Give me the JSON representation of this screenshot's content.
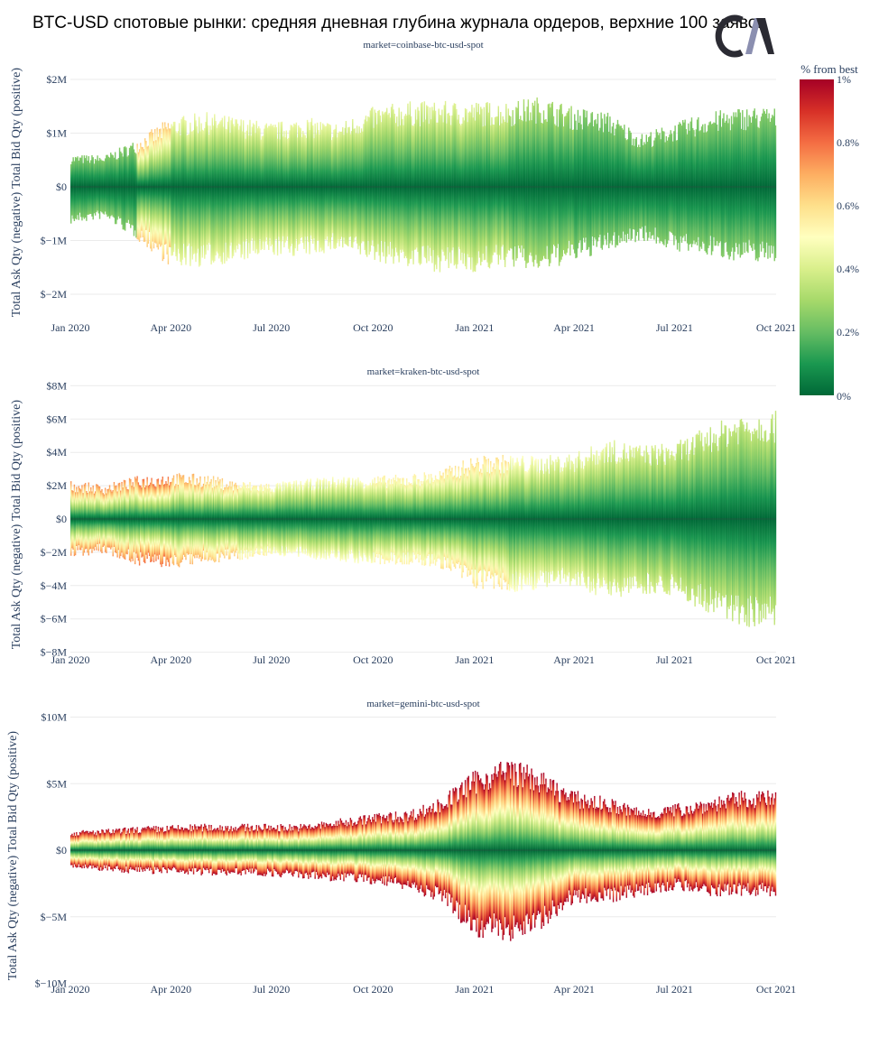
{
  "title": "BTC-USD спотовые рынки: средняя дневная глубина журнала ордеров, верхние 100 заявок",
  "logo_text": "CM",
  "chart_data": [
    {
      "type": "area",
      "subtitle": "market=coinbase-btc-usd-spot",
      "ylabel_top": "Total Bid Qty (positive)",
      "ylabel_bottom": "Total Ask Qty (negative)",
      "xlim": [
        "2020-01-01",
        "2021-10-01"
      ],
      "ylim": [
        -2.5,
        2.4
      ],
      "y_ticks": [
        {
          "v": 2,
          "label": "$2M"
        },
        {
          "v": 1,
          "label": "$1M"
        },
        {
          "v": 0,
          "label": "$0"
        },
        {
          "v": -1,
          "label": "$−1M"
        },
        {
          "v": -2,
          "label": "$−2M"
        }
      ],
      "months": [
        "2020-01",
        "2020-02",
        "2020-03",
        "2020-04",
        "2020-05",
        "2020-06",
        "2020-07",
        "2020-08",
        "2020-09",
        "2020-10",
        "2020-11",
        "2020-12",
        "2021-01",
        "2021-02",
        "2021-03",
        "2021-04",
        "2021-05",
        "2021-06",
        "2021-07",
        "2021-08",
        "2021-09"
      ],
      "bid_max_musd": [
        0.6,
        0.6,
        0.9,
        1.3,
        1.4,
        1.3,
        1.2,
        1.3,
        1.2,
        1.5,
        1.6,
        1.6,
        1.6,
        1.6,
        1.7,
        1.5,
        1.4,
        1.0,
        1.2,
        1.4,
        1.5
      ],
      "ask_max_musd": [
        0.7,
        0.6,
        1.0,
        1.5,
        1.5,
        1.4,
        1.3,
        1.3,
        1.2,
        1.4,
        1.5,
        1.6,
        1.6,
        1.5,
        1.6,
        1.4,
        1.2,
        1.0,
        1.2,
        1.3,
        1.4
      ],
      "edge_pct_from_best": [
        0.25,
        0.25,
        0.65,
        0.45,
        0.45,
        0.45,
        0.45,
        0.45,
        0.42,
        0.42,
        0.42,
        0.42,
        0.4,
        0.32,
        0.3,
        0.25,
        0.25,
        0.25,
        0.25,
        0.25,
        0.25
      ]
    },
    {
      "type": "area",
      "subtitle": "market=kraken-btc-usd-spot",
      "ylabel_top": "Total Bid Qty (positive)",
      "ylabel_bottom": "Total Ask Qty (negative)",
      "xlim": [
        "2020-01-01",
        "2021-10-01"
      ],
      "ylim": [
        -8,
        8
      ],
      "y_ticks": [
        {
          "v": 8,
          "label": "$8M"
        },
        {
          "v": 6,
          "label": "$6M"
        },
        {
          "v": 4,
          "label": "$4M"
        },
        {
          "v": 2,
          "label": "$2M"
        },
        {
          "v": 0,
          "label": "$0"
        },
        {
          "v": -2,
          "label": "$−2M"
        },
        {
          "v": -4,
          "label": "$−4M"
        },
        {
          "v": -6,
          "label": "$−6M"
        },
        {
          "v": -8,
          "label": "$−8M"
        }
      ],
      "months": [
        "2020-01",
        "2020-02",
        "2020-03",
        "2020-04",
        "2020-05",
        "2020-06",
        "2020-07",
        "2020-08",
        "2020-09",
        "2020-10",
        "2020-11",
        "2020-12",
        "2021-01",
        "2021-02",
        "2021-03",
        "2021-04",
        "2021-05",
        "2021-06",
        "2021-07",
        "2021-08",
        "2021-09"
      ],
      "bid_max_musd": [
        2.3,
        2.1,
        2.6,
        2.8,
        2.7,
        2.3,
        2.2,
        2.4,
        2.6,
        2.6,
        2.7,
        3.0,
        3.8,
        3.9,
        3.8,
        4.0,
        4.8,
        4.5,
        4.6,
        5.6,
        6.5
      ],
      "ask_max_musd": [
        2.3,
        2.1,
        2.8,
        3.0,
        2.7,
        2.5,
        2.2,
        2.4,
        2.6,
        2.8,
        2.8,
        3.0,
        4.2,
        4.5,
        4.2,
        4.2,
        4.8,
        4.5,
        4.6,
        5.8,
        6.5
      ],
      "edge_pct_from_best": [
        0.75,
        0.75,
        0.8,
        0.7,
        0.65,
        0.55,
        0.5,
        0.5,
        0.5,
        0.55,
        0.55,
        0.6,
        0.6,
        0.5,
        0.45,
        0.45,
        0.42,
        0.4,
        0.38,
        0.36,
        0.36
      ]
    },
    {
      "type": "area",
      "subtitle": "market=gemini-btc-usd-spot",
      "ylabel_top": "Total Bid Qty (positive)",
      "ylabel_bottom": "Total Ask Qty (negative)",
      "xlim": [
        "2020-01-01",
        "2021-10-01"
      ],
      "ylim": [
        -10,
        10
      ],
      "y_ticks": [
        {
          "v": 10,
          "label": "$10M"
        },
        {
          "v": 5,
          "label": "$5M"
        },
        {
          "v": 0,
          "label": "$0"
        },
        {
          "v": -5,
          "label": "$−5M"
        },
        {
          "v": -10,
          "label": "$−10M"
        }
      ],
      "months": [
        "2020-01",
        "2020-02",
        "2020-03",
        "2020-04",
        "2020-05",
        "2020-06",
        "2020-07",
        "2020-08",
        "2020-09",
        "2020-10",
        "2020-11",
        "2020-12",
        "2021-01",
        "2021-02",
        "2021-03",
        "2021-04",
        "2021-05",
        "2021-06",
        "2021-07",
        "2021-08",
        "2021-09"
      ],
      "bid_max_musd": [
        1.5,
        1.6,
        1.8,
        1.9,
        2.0,
        2.0,
        2.0,
        2.0,
        2.4,
        2.8,
        3.0,
        4.0,
        6.0,
        7.0,
        6.0,
        4.5,
        4.0,
        3.2,
        3.5,
        4.0,
        4.5
      ],
      "ask_max_musd": [
        1.4,
        1.6,
        1.8,
        1.8,
        1.9,
        1.9,
        2.0,
        2.2,
        2.4,
        2.6,
        3.0,
        4.0,
        6.5,
        7.0,
        6.0,
        4.0,
        4.0,
        3.5,
        3.0,
        3.5,
        3.5
      ],
      "edge_pct_from_best": [
        1,
        1,
        1,
        1,
        1,
        1,
        1,
        1,
        1,
        1,
        1,
        1,
        1,
        1,
        1,
        1,
        1,
        1,
        1,
        1,
        1
      ]
    }
  ],
  "x_ticks": [
    {
      "date": "2020-01-01",
      "label": "Jan 2020"
    },
    {
      "date": "2020-04-01",
      "label": "Apr 2020"
    },
    {
      "date": "2020-07-01",
      "label": "Jul 2020"
    },
    {
      "date": "2020-10-01",
      "label": "Oct 2020"
    },
    {
      "date": "2021-01-01",
      "label": "Jan 2021"
    },
    {
      "date": "2021-04-01",
      "label": "Apr 2021"
    },
    {
      "date": "2021-07-01",
      "label": "Jul 2021"
    },
    {
      "date": "2021-10-01",
      "label": "Oct 2021"
    }
  ],
  "colorbar": {
    "title": "% from best",
    "range": [
      0,
      1
    ],
    "ticks": [
      {
        "v": 1,
        "label": "1%"
      },
      {
        "v": 0.8,
        "label": "0.8%"
      },
      {
        "v": 0.6,
        "label": "0.6%"
      },
      {
        "v": 0.4,
        "label": "0.4%"
      },
      {
        "v": 0.2,
        "label": "0.2%"
      },
      {
        "v": 0,
        "label": "0%"
      }
    ],
    "colorscale": [
      "#006837",
      "#1a9850",
      "#66bd63",
      "#a6d96a",
      "#d9ef8b",
      "#ffffbf",
      "#fee08b",
      "#fdae61",
      "#f46d43",
      "#d73027",
      "#a50026"
    ]
  }
}
